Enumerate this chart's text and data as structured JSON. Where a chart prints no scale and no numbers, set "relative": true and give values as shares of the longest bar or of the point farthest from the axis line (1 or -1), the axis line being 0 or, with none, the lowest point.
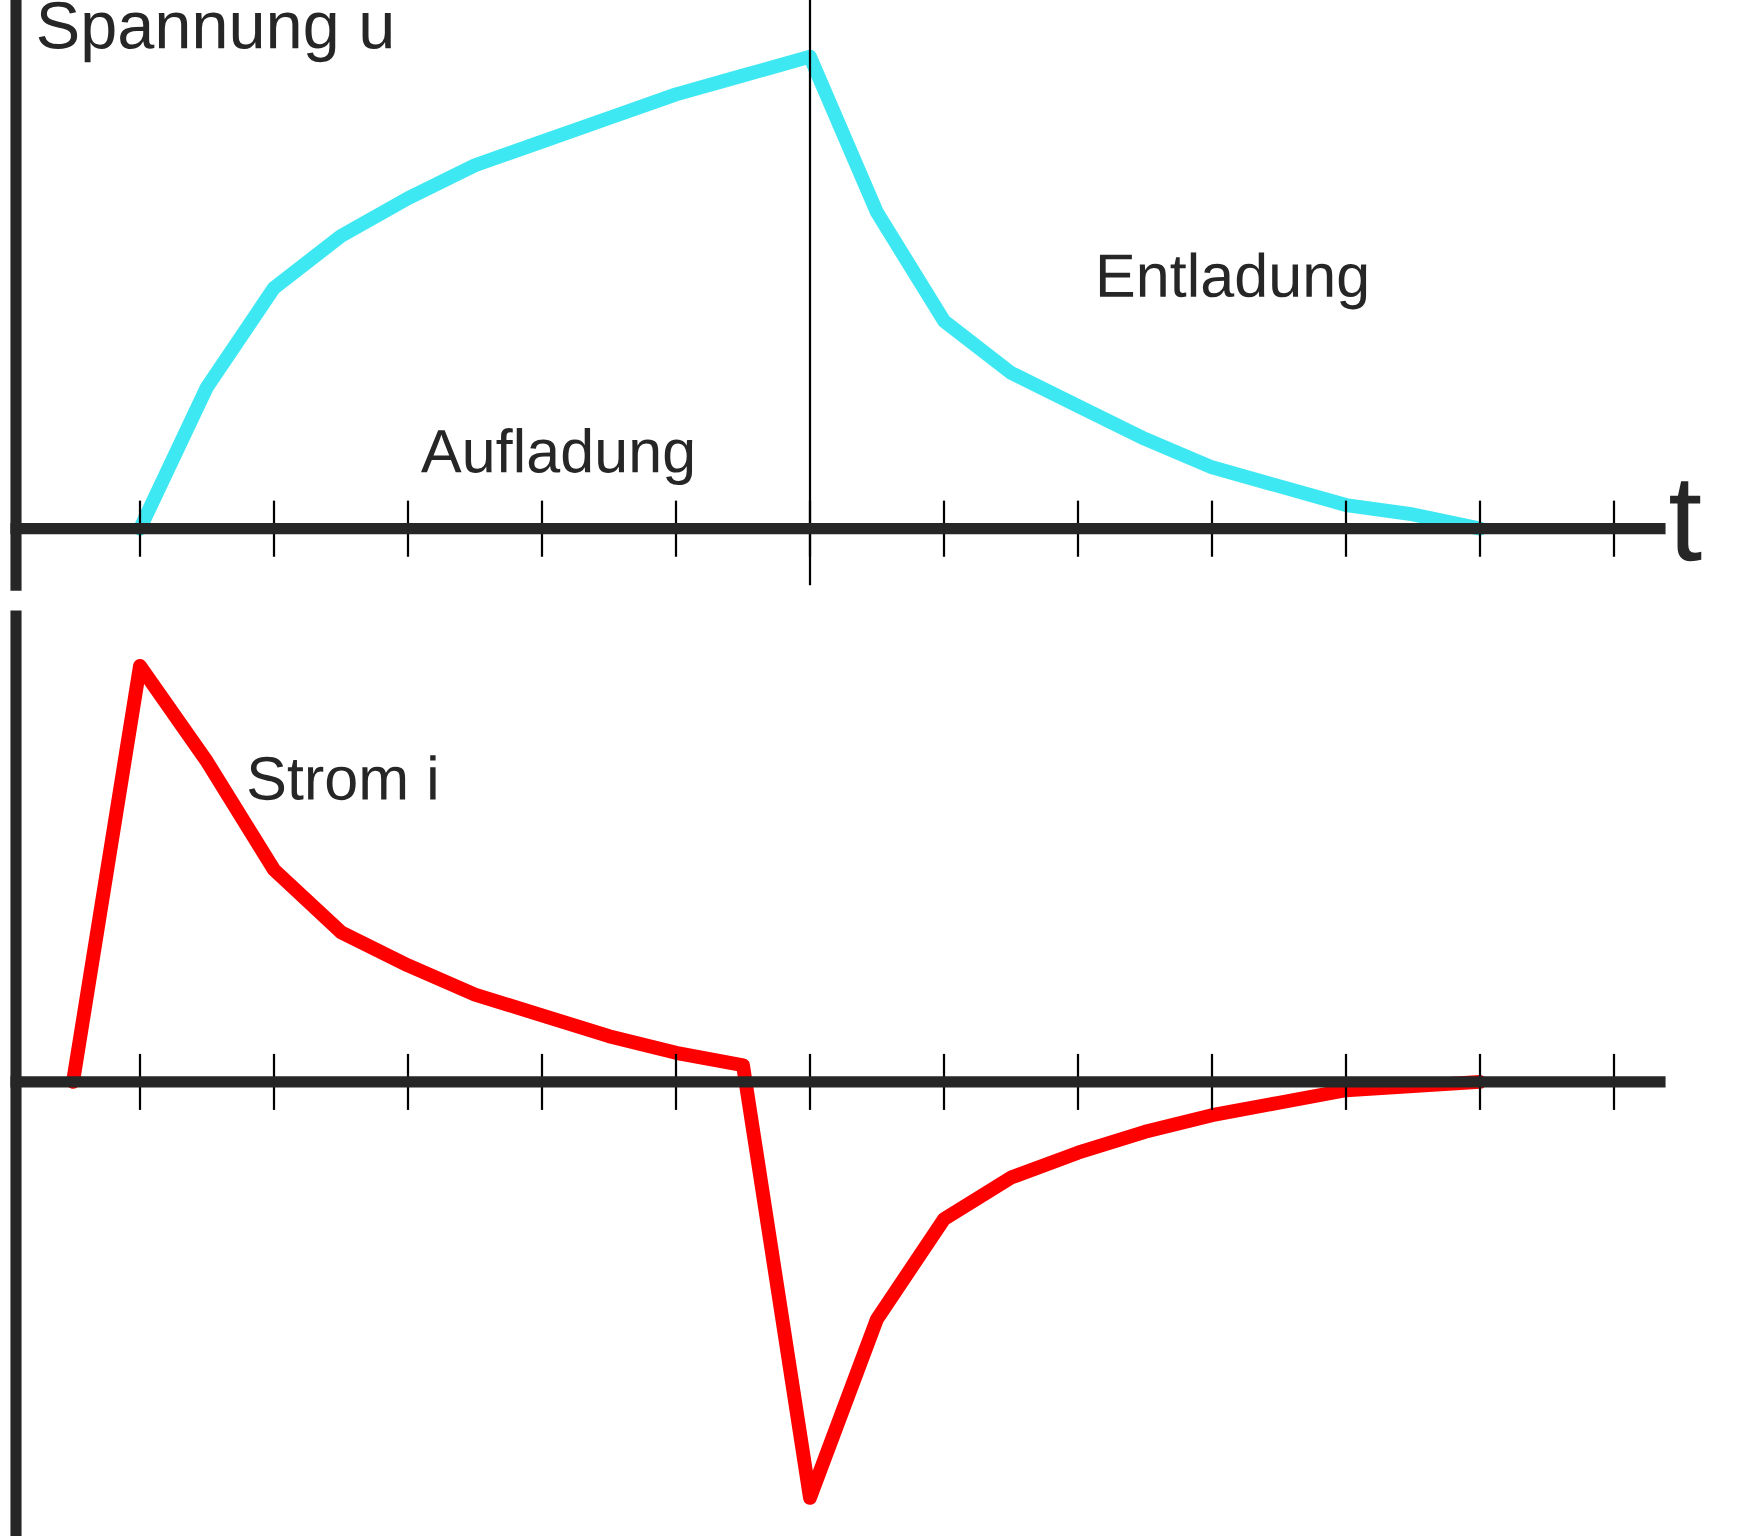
{
  "chart_data": [
    {
      "type": "line",
      "relative": true,
      "ylabel": "Spannung u",
      "xlabel": "t",
      "categories": [
        null,
        null,
        null,
        null,
        null,
        null,
        null,
        null,
        null,
        null,
        null,
        null,
        null,
        null,
        null,
        null,
        null,
        null,
        null,
        null,
        null,
        null,
        null,
        null
      ],
      "series": [
        {
          "color": "#3ee8f2",
          "values": [
            null,
            0,
            0.3,
            0.51,
            0.62,
            0.7,
            0.77,
            0.82,
            0.87,
            0.92,
            0.96,
            1,
            0.67,
            0.44,
            0.33,
            0.26,
            0.19,
            0.13,
            0.09,
            0.05,
            0.03,
            0,
            null,
            null
          ]
        }
      ],
      "annotations": [
        "Aufladung",
        "Entladung"
      ]
    },
    {
      "type": "line",
      "relative": true,
      "ylabel": "Strom i",
      "categories": [
        null,
        null,
        null,
        null,
        null,
        null,
        null,
        null,
        null,
        null,
        null,
        null,
        null,
        null,
        null,
        null,
        null,
        null,
        null,
        null,
        null,
        null,
        null,
        null
      ],
      "series": [
        {
          "color": "#ff0000",
          "values": [
            0,
            1,
            0.77,
            0.51,
            0.36,
            0.28,
            0.21,
            0.16,
            0.11,
            0.07,
            0.04,
            -1,
            -0.57,
            -0.33,
            -0.23,
            -0.17,
            -0.12,
            -0.08,
            -0.05,
            -0.02,
            -0.01,
            0,
            null,
            null
          ]
        }
      ]
    }
  ]
}
